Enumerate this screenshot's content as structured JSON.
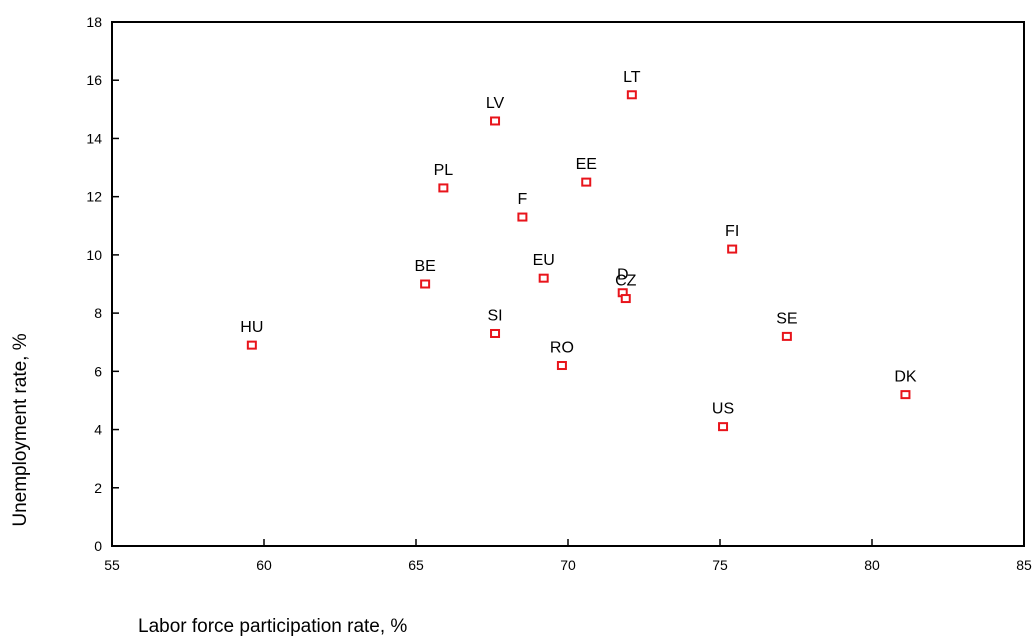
{
  "chart_data": {
    "type": "scatter",
    "title": "",
    "xlabel": "Labor force participation rate, %",
    "ylabel": "Unemployment rate, %",
    "xlim": [
      55,
      85
    ],
    "ylim": [
      0,
      18
    ],
    "xticks": [
      55,
      60,
      65,
      70,
      75,
      80,
      85
    ],
    "yticks": [
      0,
      2,
      4,
      6,
      8,
      10,
      12,
      14,
      16,
      18
    ],
    "grid": false,
    "marker_color": "#e8141b",
    "points": [
      {
        "label": "HU",
        "x": 59.6,
        "y": 6.9
      },
      {
        "label": "BE",
        "x": 65.3,
        "y": 9.0
      },
      {
        "label": "PL",
        "x": 65.9,
        "y": 12.3
      },
      {
        "label": "SI",
        "x": 67.6,
        "y": 7.3
      },
      {
        "label": "LV",
        "x": 67.6,
        "y": 14.6
      },
      {
        "label": "F",
        "x": 68.5,
        "y": 11.3
      },
      {
        "label": "EU",
        "x": 69.2,
        "y": 9.2
      },
      {
        "label": "RO",
        "x": 69.8,
        "y": 6.2
      },
      {
        "label": "EE",
        "x": 70.6,
        "y": 12.5
      },
      {
        "label": "D",
        "x": 71.8,
        "y": 8.7
      },
      {
        "label": "CZ",
        "x": 71.9,
        "y": 8.5
      },
      {
        "label": "LT",
        "x": 72.1,
        "y": 15.5
      },
      {
        "label": "US",
        "x": 75.1,
        "y": 4.1
      },
      {
        "label": "FI",
        "x": 75.4,
        "y": 10.2
      },
      {
        "label": "SE",
        "x": 77.2,
        "y": 7.2
      },
      {
        "label": "DK",
        "x": 81.1,
        "y": 5.2
      }
    ]
  }
}
